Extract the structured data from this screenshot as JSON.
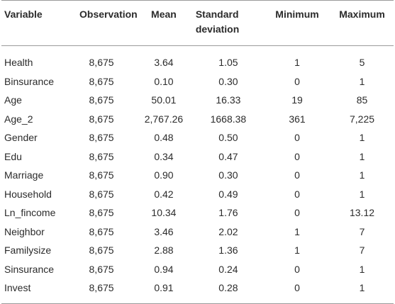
{
  "table": {
    "headers": [
      "Variable",
      "Observation",
      "Mean",
      "Standard deviation",
      "Minimum",
      "Maximum"
    ],
    "rows": [
      [
        "Health",
        "8,675",
        "3.64",
        "1.05",
        "1",
        "5"
      ],
      [
        "Binsurance",
        "8,675",
        "0.10",
        "0.30",
        "0",
        "1"
      ],
      [
        "Age",
        "8,675",
        "50.01",
        "16.33",
        "19",
        "85"
      ],
      [
        "Age_2",
        "8,675",
        "2,767.26",
        "1668.38",
        "361",
        "7,225"
      ],
      [
        "Gender",
        "8,675",
        "0.48",
        "0.50",
        "0",
        "1"
      ],
      [
        "Edu",
        "8,675",
        "0.34",
        "0.47",
        "0",
        "1"
      ],
      [
        "Marriage",
        "8,675",
        "0.90",
        "0.30",
        "0",
        "1"
      ],
      [
        "Household",
        "8,675",
        "0.42",
        "0.49",
        "0",
        "1"
      ],
      [
        "Ln_fincome",
        "8,675",
        "10.34",
        "1.76",
        "0",
        "13.12"
      ],
      [
        "Neighbor",
        "8,675",
        "3.46",
        "2.02",
        "1",
        "7"
      ],
      [
        "Familysize",
        "8,675",
        "2.88",
        "1.36",
        "1",
        "7"
      ],
      [
        "Sinsurance",
        "8,675",
        "0.94",
        "0.24",
        "0",
        "1"
      ],
      [
        "Invest",
        "8,675",
        "0.91",
        "0.28",
        "0",
        "1"
      ]
    ]
  }
}
